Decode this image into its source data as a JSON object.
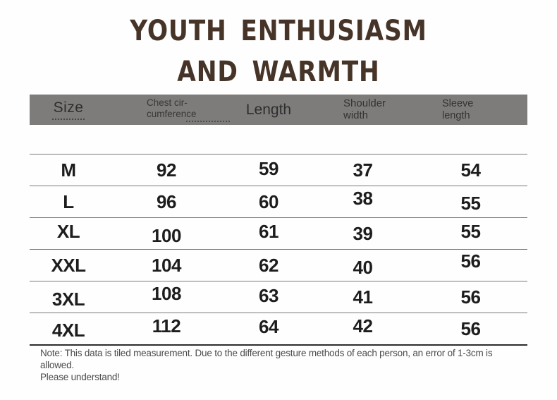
{
  "title": {
    "line1": "YOUTH ENTHUSIASM",
    "line2": "AND WARMTH"
  },
  "table": {
    "headers": [
      {
        "l1": "Size",
        "l2": ""
      },
      {
        "l1": "Chest cir-",
        "l2": "cumference"
      },
      {
        "l1": "Length",
        "l2": ""
      },
      {
        "l1": "Shoulder",
        "l2": "width"
      },
      {
        "l1": "Sleeve",
        "l2": "length"
      }
    ],
    "rows": [
      [
        "M",
        "92",
        "59",
        "37",
        "54"
      ],
      [
        "L",
        "96",
        "60",
        "38",
        "55"
      ],
      [
        "XL",
        "100",
        "61",
        "39",
        "55"
      ],
      [
        "XXL",
        "104",
        "62",
        "40",
        "56"
      ],
      [
        "3XL",
        "108",
        "63",
        "41",
        "56"
      ],
      [
        "4XL",
        "112",
        "64",
        "42",
        "56"
      ]
    ]
  },
  "note": {
    "line1": "Note: This data is tiled measurement. Due to the different gesture methods of each person, an error of 1-3cm is allowed.",
    "line2": "Please understand!"
  },
  "colors": {
    "title_brown": "#473428",
    "header_gray": "#7e7c7a",
    "row_line_gray": "#7a7a7a",
    "bottom_line_dark": "#2c2c2c",
    "text_black": "#1d1d1d",
    "note_gray": "#4b4b4b"
  },
  "chart_data": {
    "type": "table",
    "title": "YOUTH ENTHUSIASM AND WARMTH",
    "columns": [
      "Size",
      "Chest circumference",
      "Length",
      "Shoulder width",
      "Sleeve length"
    ],
    "rows": [
      [
        "M",
        92,
        59,
        37,
        54
      ],
      [
        "L",
        96,
        60,
        38,
        55
      ],
      [
        "XL",
        100,
        61,
        39,
        55
      ],
      [
        "XXL",
        104,
        62,
        40,
        56
      ],
      [
        "3XL",
        108,
        63,
        41,
        56
      ],
      [
        "4XL",
        112,
        64,
        42,
        56
      ]
    ],
    "units": "cm",
    "note": "Note: This data is tiled measurement. Due to the different gesture methods of each person, an error of 1-3cm is allowed. Please understand!"
  }
}
